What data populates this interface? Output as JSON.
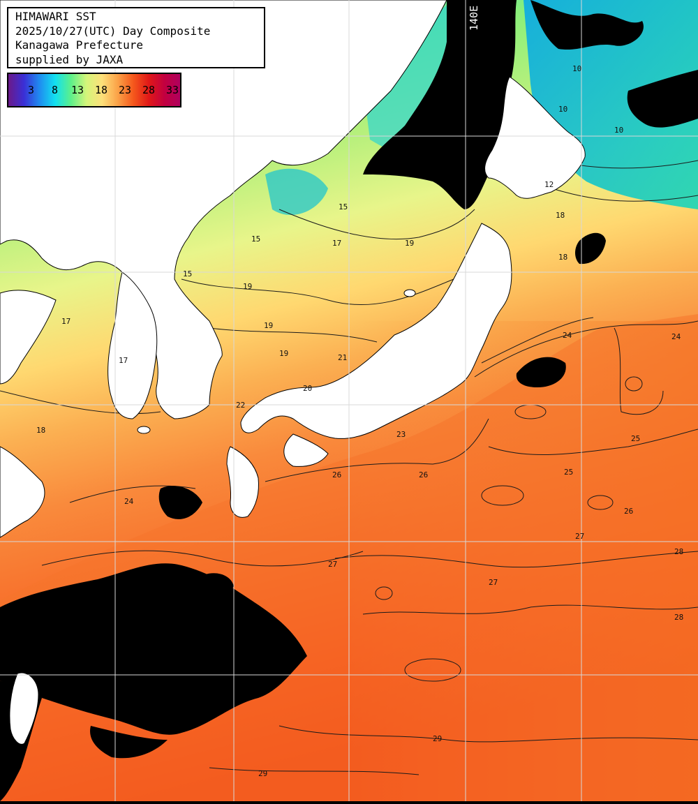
{
  "header": {
    "line1": "HIMAWARI SST",
    "line2": "2025/10/27(UTC) Day Composite",
    "line3": "Kanagawa Prefecture",
    "line4": "supplied by JAXA"
  },
  "legend": {
    "labels": [
      "3",
      "8",
      "13",
      "18",
      "23",
      "28",
      "33"
    ],
    "stops": [
      "#6b1a8a",
      "#3a2fd6",
      "#1f8cf0",
      "#12e0f0",
      "#5cf08a",
      "#d4f57a",
      "#fde07a",
      "#fba248",
      "#f5581c",
      "#e01818",
      "#c20040",
      "#b0005e"
    ]
  },
  "grid": {
    "meridian_label": "140E"
  },
  "colors": {
    "land": "#ffffff",
    "cloud": "#000000",
    "grid": "#d8d8d8",
    "contour": "#1a1a1a",
    "frame": "#000000"
  },
  "contour_labels": {
    "north": [
      "10",
      "10",
      "10",
      "12",
      "15",
      "15",
      "15",
      "17",
      "18",
      "19"
    ],
    "middle": [
      "17",
      "17",
      "18",
      "18",
      "19",
      "19",
      "19",
      "20",
      "21",
      "22",
      "23",
      "24",
      "24"
    ],
    "south": [
      "24",
      "25",
      "25",
      "26",
      "26",
      "26",
      "27",
      "27",
      "27",
      "28",
      "28",
      "29",
      "29"
    ]
  }
}
